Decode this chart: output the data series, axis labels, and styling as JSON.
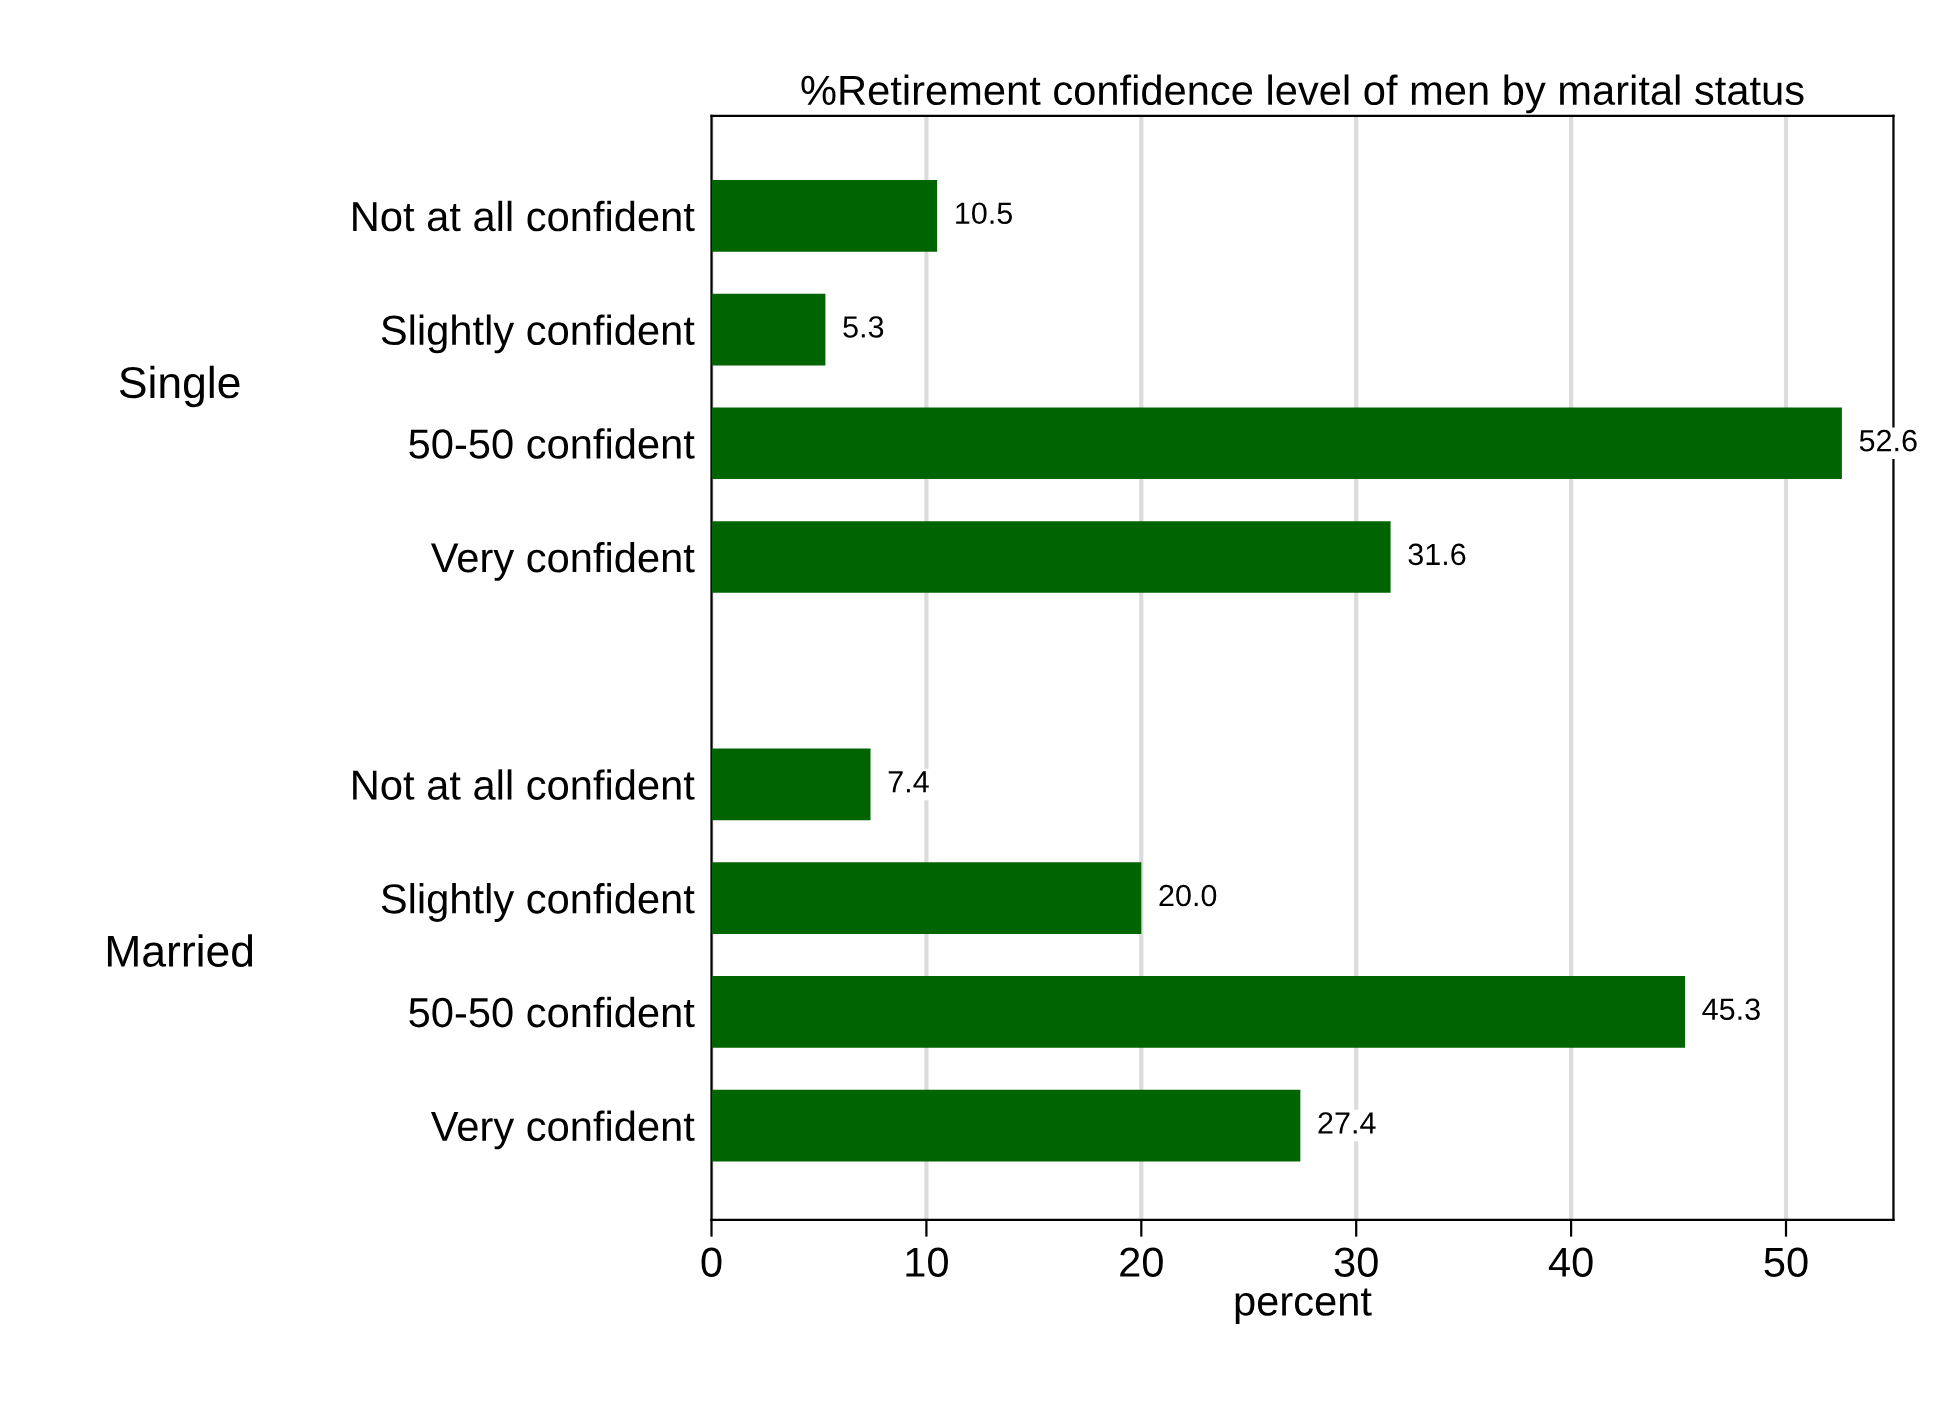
{
  "chart_data": {
    "type": "bar",
    "orientation": "horizontal",
    "title": "%Retirement confidence level of men by marital status",
    "xlabel": "percent",
    "categories": [
      "Not at all confident",
      "Slightly confident",
      "50-50 confident",
      "Very confident",
      null,
      "Not at all confident",
      "Slightly confident",
      "50-50 confident",
      "Very confident"
    ],
    "values": [
      10.5,
      5.3,
      52.6,
      31.6,
      null,
      7.4,
      20.0,
      45.3,
      27.4
    ],
    "value_labels": [
      "10.5",
      "5.3",
      "52.6",
      "31.6",
      null,
      "7.4",
      "20.0",
      "45.3",
      "27.4"
    ],
    "color": "#006400",
    "annotations": [
      "Single",
      "Married"
    ],
    "xlim": [
      0,
      55
    ],
    "xticks": [
      0,
      10,
      20,
      30,
      40,
      50
    ],
    "grid": "x",
    "legend": false
  }
}
